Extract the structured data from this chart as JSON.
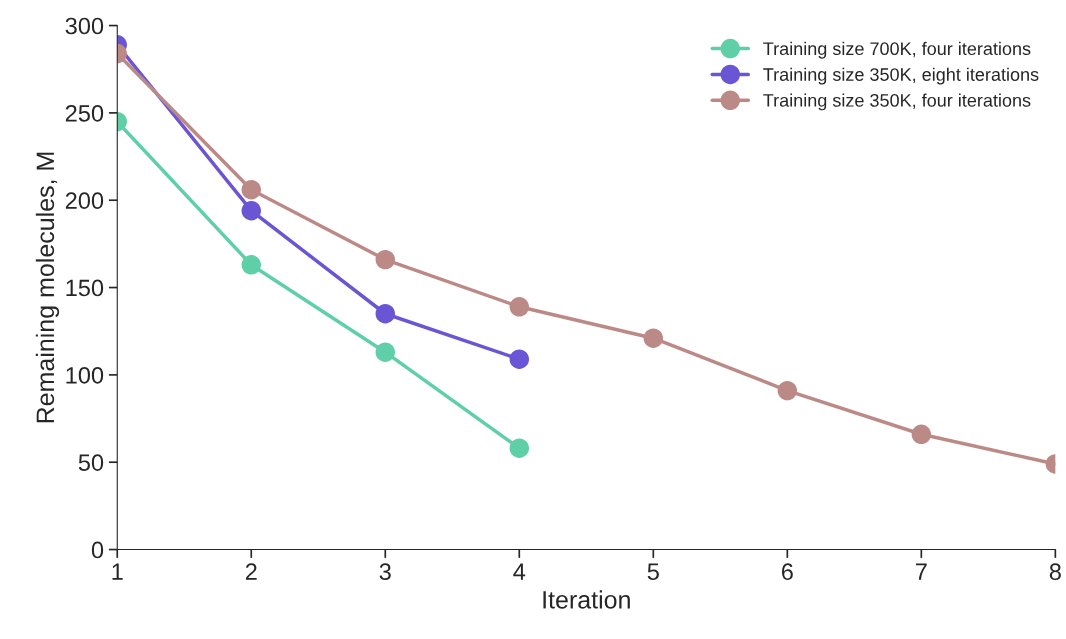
{
  "chart_data": {
    "type": "line",
    "xlabel": "Iteration",
    "ylabel": "Remaining molecules, M",
    "x": [
      1,
      2,
      3,
      4,
      5,
      6,
      7,
      8
    ],
    "series": [
      {
        "name": "Training size 700K, four iterations",
        "color": "#5fcfa8",
        "values": [
          245,
          163,
          113,
          58,
          null,
          null,
          null,
          null
        ]
      },
      {
        "name": "Training size 350K, eight iterations",
        "color": "#6a55d4",
        "values": [
          289,
          194,
          135,
          109,
          null,
          null,
          null,
          null
        ]
      },
      {
        "name": "Training size 350K, four iterations",
        "color": "#bc8a86",
        "values": [
          284,
          206,
          166,
          139,
          121,
          91,
          66,
          49
        ]
      }
    ],
    "xlim": [
      1,
      8
    ],
    "xticks": [
      1,
      2,
      3,
      4,
      5,
      6,
      7,
      8
    ],
    "ylim": [
      0,
      300
    ],
    "yticks": [
      0,
      50,
      100,
      150,
      200,
      250,
      300
    ],
    "marker": "circle",
    "line_style": "solid",
    "grid": false,
    "legend": "top right"
  }
}
